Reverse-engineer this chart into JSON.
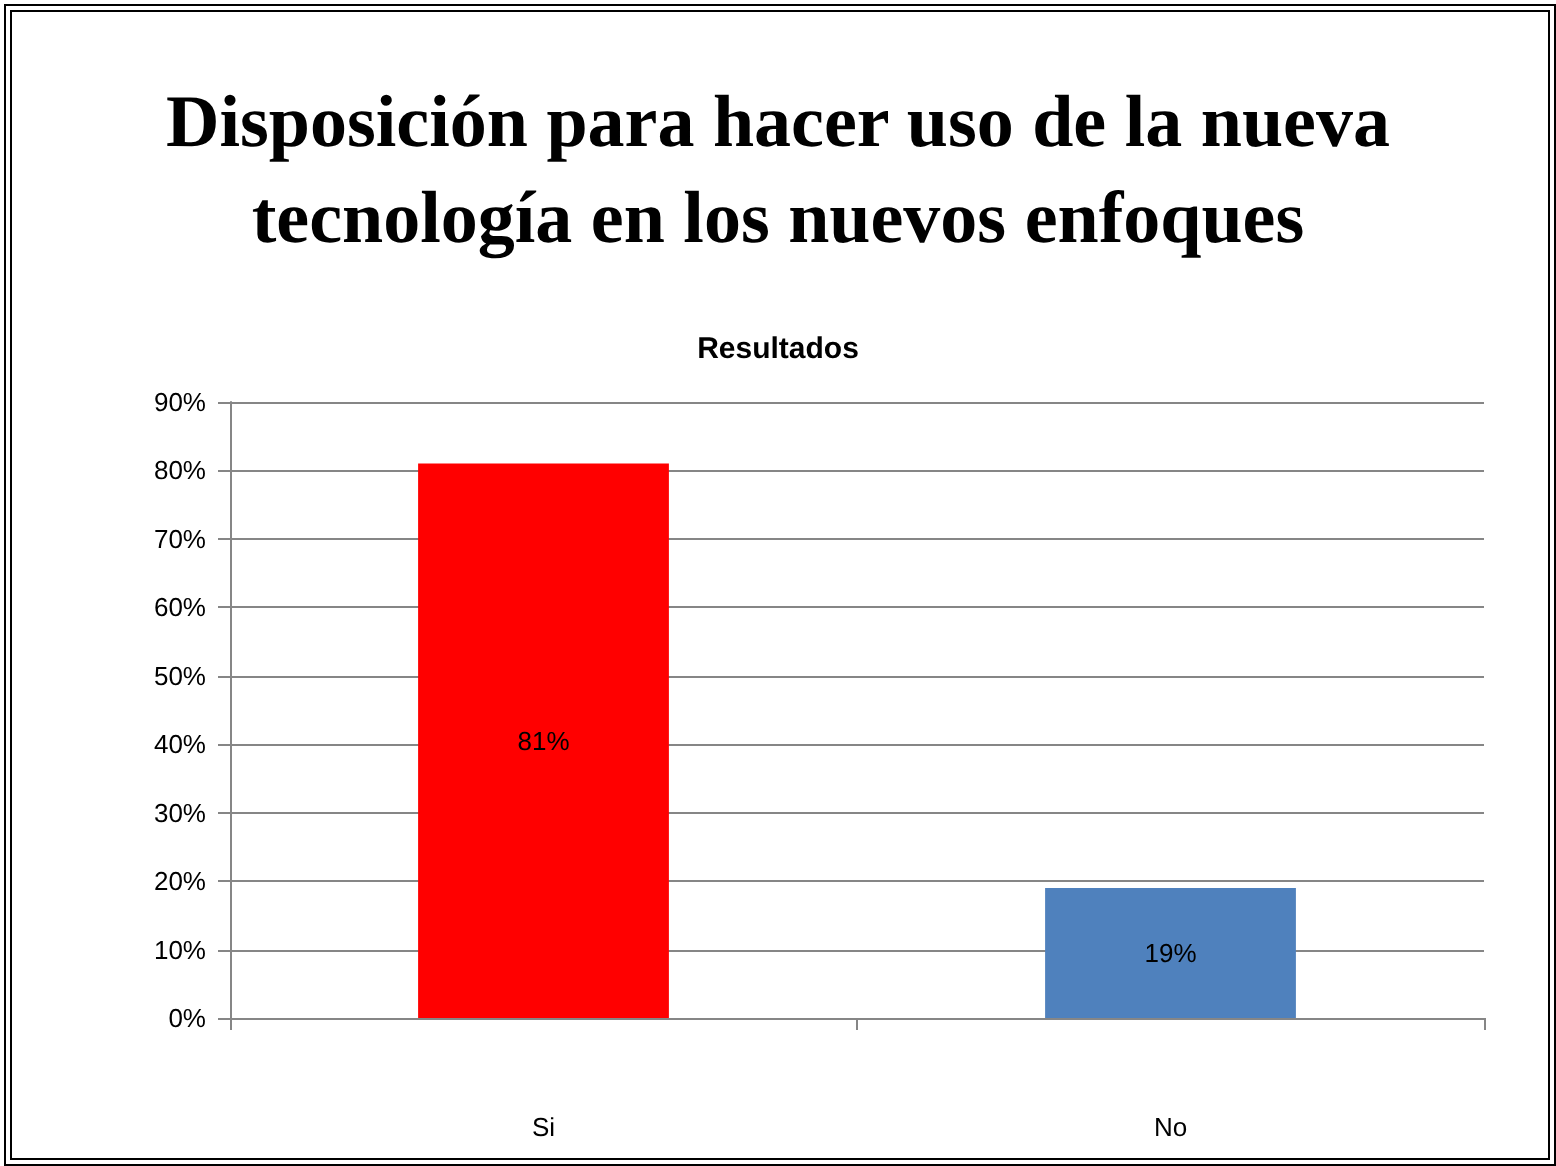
{
  "chart_data": {
    "type": "bar",
    "title": "Disposición para hacer uso de la nueva tecnología en los nuevos enfoques",
    "subtitle": "Resultados",
    "categories": [
      "Si",
      "No"
    ],
    "values": [
      81,
      19
    ],
    "colors": [
      "#ff0000",
      "#4f81bd"
    ],
    "value_labels": [
      "81%",
      "19%"
    ],
    "ylim": [
      0,
      90
    ],
    "yticks": [
      {
        "value": 0,
        "label": "0%"
      },
      {
        "value": 10,
        "label": "10%"
      },
      {
        "value": 20,
        "label": "20%"
      },
      {
        "value": 30,
        "label": "30%"
      },
      {
        "value": 40,
        "label": "40%"
      },
      {
        "value": 50,
        "label": "50%"
      },
      {
        "value": 60,
        "label": "60%"
      },
      {
        "value": 70,
        "label": "70%"
      },
      {
        "value": 80,
        "label": "80%"
      },
      {
        "value": 90,
        "label": "90%"
      }
    ],
    "grid": "y"
  }
}
